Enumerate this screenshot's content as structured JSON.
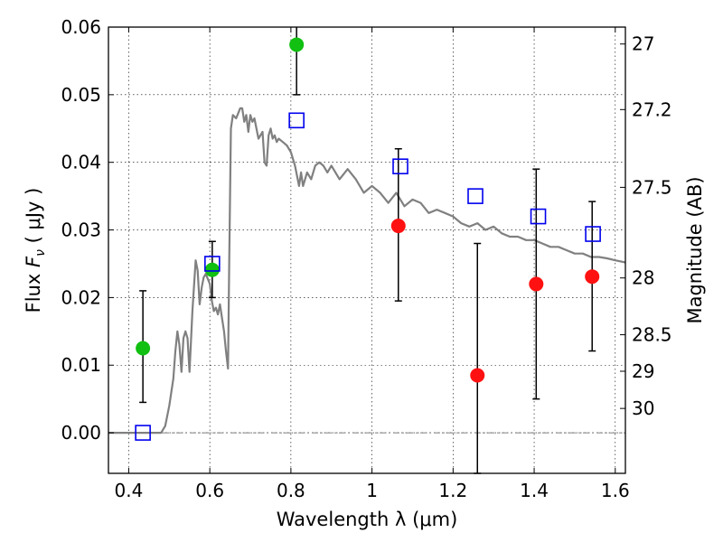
{
  "chart_data": {
    "type": "scatter",
    "xlabel": "Wavelength  λ (μm)",
    "ylabel": "Flux  F_ν  ( μJy )",
    "ylabel_parts": {
      "prefix": "Flux  ",
      "symbol": "F",
      "subscript": "ν",
      "suffix": "  ( μJy )"
    },
    "y2label": "Magnitude (AB)",
    "xlim": [
      0.35,
      1.625
    ],
    "ylim": [
      -0.006,
      0.06
    ],
    "grid": true,
    "x_ticks": [
      0.4,
      0.6,
      0.8,
      1.0,
      1.2,
      1.4,
      1.6
    ],
    "x_tick_labels": [
      "0.4",
      "0.6",
      "0.8",
      "1",
      "1.2",
      "1.4",
      "1.6"
    ],
    "y_ticks": [
      0.0,
      0.01,
      0.02,
      0.03,
      0.04,
      0.05,
      0.06
    ],
    "y_tick_labels": [
      "0.00",
      "0.01",
      "0.02",
      "0.03",
      "0.04",
      "0.05",
      "0.06"
    ],
    "y2_ticks": [
      {
        "label": "27",
        "flux": 0.0575
      },
      {
        "label": "27.2",
        "flux": 0.0478
      },
      {
        "label": "27.5",
        "flux": 0.0363
      },
      {
        "label": "28",
        "flux": 0.0229
      },
      {
        "label": "28.5",
        "flux": 0.0145
      },
      {
        "label": "29",
        "flux": 0.0091
      },
      {
        "label": "30",
        "flux": 0.0036
      }
    ],
    "colors": {
      "model": "#808080",
      "detection": "#11c011",
      "nondetection": "#ff1111",
      "model_photometry": "#0000ee",
      "errorbar": "#000000",
      "zero_line": "#555555"
    },
    "model_sed": {
      "x": [
        0.35,
        0.48,
        0.49,
        0.5,
        0.51,
        0.515,
        0.52,
        0.525,
        0.53,
        0.535,
        0.54,
        0.545,
        0.55,
        0.557,
        0.565,
        0.57,
        0.575,
        0.58,
        0.585,
        0.59,
        0.6,
        0.605,
        0.61,
        0.615,
        0.62,
        0.625,
        0.63,
        0.635,
        0.64,
        0.645,
        0.648,
        0.652,
        0.657,
        0.665,
        0.675,
        0.68,
        0.685,
        0.69,
        0.695,
        0.7,
        0.705,
        0.71,
        0.72,
        0.73,
        0.735,
        0.74,
        0.745,
        0.75,
        0.755,
        0.76,
        0.765,
        0.77,
        0.78,
        0.79,
        0.8,
        0.81,
        0.82,
        0.825,
        0.83,
        0.84,
        0.85,
        0.86,
        0.87,
        0.88,
        0.89,
        0.9,
        0.92,
        0.94,
        0.96,
        0.98,
        1.0,
        1.02,
        1.04,
        1.06,
        1.08,
        1.1,
        1.12,
        1.14,
        1.16,
        1.18,
        1.2,
        1.22,
        1.24,
        1.26,
        1.28,
        1.3,
        1.32,
        1.34,
        1.36,
        1.38,
        1.4,
        1.42,
        1.44,
        1.46,
        1.48,
        1.5,
        1.52,
        1.54,
        1.56,
        1.58,
        1.6,
        1.625
      ],
      "y": [
        0.0,
        0.0,
        0.001,
        0.004,
        0.008,
        0.012,
        0.015,
        0.013,
        0.009,
        0.014,
        0.015,
        0.014,
        0.009,
        0.018,
        0.0255,
        0.024,
        0.019,
        0.0215,
        0.023,
        0.0235,
        0.022,
        0.0195,
        0.018,
        0.0185,
        0.0175,
        0.019,
        0.017,
        0.015,
        0.012,
        0.0095,
        0.026,
        0.045,
        0.047,
        0.0465,
        0.048,
        0.048,
        0.046,
        0.047,
        0.0445,
        0.047,
        0.046,
        0.0465,
        0.0435,
        0.0445,
        0.04,
        0.0395,
        0.044,
        0.045,
        0.0435,
        0.044,
        0.043,
        0.0435,
        0.043,
        0.0425,
        0.0415,
        0.0395,
        0.0365,
        0.0385,
        0.0365,
        0.0385,
        0.0375,
        0.0395,
        0.04,
        0.0395,
        0.0385,
        0.0395,
        0.0375,
        0.039,
        0.0375,
        0.0355,
        0.0365,
        0.0355,
        0.034,
        0.0355,
        0.0335,
        0.0345,
        0.034,
        0.0325,
        0.033,
        0.0325,
        0.032,
        0.031,
        0.0305,
        0.031,
        0.03,
        0.0305,
        0.0295,
        0.029,
        0.029,
        0.0285,
        0.0285,
        0.028,
        0.0275,
        0.0275,
        0.027,
        0.0265,
        0.0265,
        0.026,
        0.026,
        0.0258,
        0.0255,
        0.0252
      ]
    },
    "series": [
      {
        "kind": "detection",
        "points": [
          {
            "x": 0.435,
            "y": 0.0125,
            "yerr_low": 0.0045,
            "yerr_high": 0.021
          },
          {
            "x": 0.606,
            "y": 0.0241,
            "yerr_low": 0.02,
            "yerr_high": 0.0283
          },
          {
            "x": 0.814,
            "y": 0.0574,
            "yerr_low": 0.05,
            "yerr_high": 0.0602
          }
        ]
      },
      {
        "kind": "nondetection",
        "points": [
          {
            "x": 1.065,
            "y": 0.0306,
            "yerr_low": 0.0195,
            "yerr_high": 0.042
          },
          {
            "x": 1.26,
            "y": 0.0085,
            "yerr_low": -0.006,
            "yerr_high": 0.028
          },
          {
            "x": 1.405,
            "y": 0.022,
            "yerr_low": 0.005,
            "yerr_high": 0.039
          },
          {
            "x": 1.543,
            "y": 0.0231,
            "yerr_low": 0.0121,
            "yerr_high": 0.0342
          }
        ]
      },
      {
        "kind": "model_photometry",
        "points": [
          {
            "x": 0.435,
            "y": 0.0
          },
          {
            "x": 0.606,
            "y": 0.025
          },
          {
            "x": 0.814,
            "y": 0.0462
          },
          {
            "x": 1.07,
            "y": 0.0394
          },
          {
            "x": 1.255,
            "y": 0.035
          },
          {
            "x": 1.41,
            "y": 0.032
          },
          {
            "x": 1.545,
            "y": 0.0294
          }
        ]
      }
    ]
  }
}
